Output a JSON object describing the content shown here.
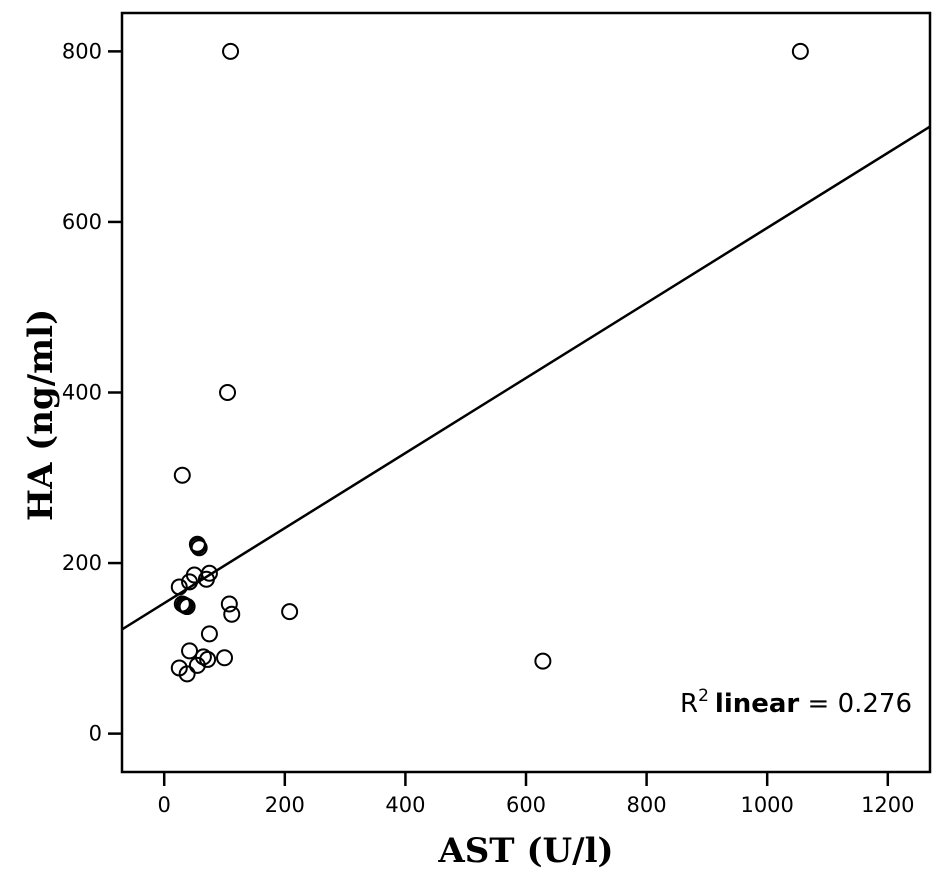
{
  "chart_data": {
    "type": "scatter",
    "xlabel": "AST (U/l)",
    "ylabel": "HA (ng/ml)",
    "xlim": [
      -70,
      1270
    ],
    "ylim": [
      -45,
      845
    ],
    "xticks": [
      0,
      200,
      400,
      600,
      800,
      1000,
      1200
    ],
    "yticks": [
      0,
      200,
      400,
      600,
      800
    ],
    "grid": false,
    "points": [
      {
        "x": 110,
        "y": 800
      },
      {
        "x": 1055,
        "y": 800
      },
      {
        "x": 105,
        "y": 400
      },
      {
        "x": 30,
        "y": 303
      },
      {
        "x": 55,
        "y": 222
      },
      {
        "x": 58,
        "y": 218
      },
      {
        "x": 56,
        "y": 220
      },
      {
        "x": 75,
        "y": 188
      },
      {
        "x": 50,
        "y": 186
      },
      {
        "x": 70,
        "y": 181
      },
      {
        "x": 42,
        "y": 178
      },
      {
        "x": 25,
        "y": 172
      },
      {
        "x": 30,
        "y": 152
      },
      {
        "x": 35,
        "y": 150
      },
      {
        "x": 38,
        "y": 149
      },
      {
        "x": 33,
        "y": 151
      },
      {
        "x": 108,
        "y": 152
      },
      {
        "x": 112,
        "y": 140
      },
      {
        "x": 208,
        "y": 143
      },
      {
        "x": 75,
        "y": 117
      },
      {
        "x": 42,
        "y": 97
      },
      {
        "x": 65,
        "y": 90
      },
      {
        "x": 72,
        "y": 87
      },
      {
        "x": 100,
        "y": 89
      },
      {
        "x": 55,
        "y": 80
      },
      {
        "x": 25,
        "y": 77
      },
      {
        "x": 38,
        "y": 70
      },
      {
        "x": 628,
        "y": 85
      }
    ],
    "fit_line": {
      "type": "linear",
      "intercept": 153,
      "slope": 0.44
    },
    "annotation": {
      "prefix": "R",
      "superscript": "2",
      "bold_word": "linear",
      "suffix": " = 0.276"
    }
  }
}
